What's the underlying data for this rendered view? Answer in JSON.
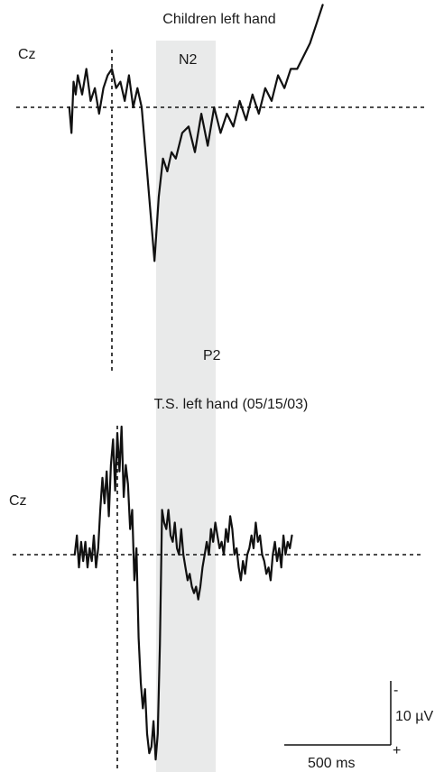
{
  "chart_data": [
    {
      "type": "line",
      "title": "Children left hand",
      "channel": "Cz",
      "peaks": [
        {
          "label": "N2",
          "t": 0.11,
          "v": -2
        },
        {
          "label": "P2",
          "t": 0.2,
          "v": 24
        }
      ],
      "series": [
        {
          "t": [
            -0.2,
            -0.19,
            -0.18,
            -0.17,
            -0.16,
            -0.14,
            -0.12,
            -0.1,
            -0.08,
            -0.06,
            -0.04,
            -0.02,
            0.0,
            0.02,
            0.04,
            0.06,
            0.08,
            0.1,
            0.12,
            0.14,
            0.16,
            0.18,
            0.2,
            0.22,
            0.24,
            0.26,
            0.28,
            0.3,
            0.33,
            0.36,
            0.39,
            0.42,
            0.45,
            0.48,
            0.51,
            0.54,
            0.57,
            0.6,
            0.63,
            0.66,
            0.69,
            0.72,
            0.75,
            0.78,
            0.81,
            0.84,
            0.87,
            0.9,
            0.93,
            0.96,
            0.99
          ],
          "v": [
            0,
            4,
            -4,
            -2,
            -5,
            -2,
            -6,
            -1,
            -3,
            1,
            -3,
            -5,
            -6,
            -3,
            -4,
            -1,
            -5,
            0,
            -3,
            0,
            8,
            16,
            24,
            14,
            8,
            10,
            7,
            8,
            4,
            3,
            7,
            1,
            6,
            0,
            4,
            1,
            3,
            -1,
            2,
            -2,
            1,
            -3,
            -1,
            -5,
            -3,
            -6,
            -6,
            -8,
            -10,
            -13,
            -16
          ]
        }
      ]
    },
    {
      "type": "line",
      "title": "T.S. left hand (05/15/03)",
      "channel": "Cz",
      "series": [
        {
          "t": [
            -0.2,
            -0.19,
            -0.18,
            -0.17,
            -0.16,
            -0.15,
            -0.14,
            -0.13,
            -0.12,
            -0.11,
            -0.1,
            -0.09,
            -0.08,
            -0.07,
            -0.06,
            -0.05,
            -0.04,
            -0.03,
            -0.02,
            -0.01,
            0.0,
            0.01,
            0.02,
            0.03,
            0.04,
            0.05,
            0.06,
            0.07,
            0.08,
            0.09,
            0.1,
            0.11,
            0.12,
            0.13,
            0.14,
            0.15,
            0.16,
            0.17,
            0.18,
            0.19,
            0.2,
            0.21,
            0.22,
            0.23,
            0.24,
            0.25,
            0.26,
            0.27,
            0.28,
            0.29,
            0.3,
            0.31,
            0.32,
            0.33,
            0.34,
            0.35,
            0.36,
            0.37,
            0.38,
            0.39,
            0.4,
            0.41,
            0.42,
            0.43,
            0.44,
            0.45,
            0.46,
            0.47,
            0.48,
            0.49,
            0.5,
            0.51,
            0.52,
            0.53,
            0.54,
            0.55,
            0.56,
            0.57,
            0.58,
            0.59,
            0.6,
            0.61,
            0.62,
            0.63,
            0.64,
            0.65,
            0.66,
            0.67,
            0.68,
            0.69,
            0.7,
            0.71,
            0.72,
            0.73,
            0.74,
            0.75,
            0.76,
            0.77,
            0.78,
            0.79,
            0.8,
            0.81,
            0.82
          ],
          "v": [
            0,
            -3,
            2,
            -2,
            1,
            -2,
            2,
            -1,
            1,
            -3,
            2,
            -1,
            -7,
            -12,
            -8,
            -13,
            -6,
            -14,
            -18,
            -10,
            -19,
            -13,
            -20,
            -9,
            -14,
            -11,
            -4,
            -7,
            4,
            -1,
            13,
            20,
            24,
            21,
            28,
            31,
            30,
            26,
            32,
            28,
            14,
            -7,
            -5,
            -4,
            -7,
            -3,
            -2,
            -5,
            -1,
            0,
            -4,
            0,
            2,
            4,
            3,
            5,
            6,
            5,
            7,
            5,
            2,
            0,
            -2,
            0,
            -4,
            -2,
            -5,
            -3,
            -1,
            -2,
            0,
            -4,
            -2,
            -6,
            -4,
            0,
            -1,
            2,
            4,
            1,
            3,
            0,
            -1,
            -3,
            -1,
            -5,
            -2,
            -3,
            0,
            1,
            3,
            2,
            4,
            0,
            -2,
            1,
            -1,
            2,
            -3,
            0,
            -2,
            -1,
            -3
          ]
        }
      ]
    }
  ],
  "scale_bar": {
    "amplitude": "10 µV",
    "time": "500 ms",
    "sign_top": "-",
    "sign_bottom": "+"
  }
}
